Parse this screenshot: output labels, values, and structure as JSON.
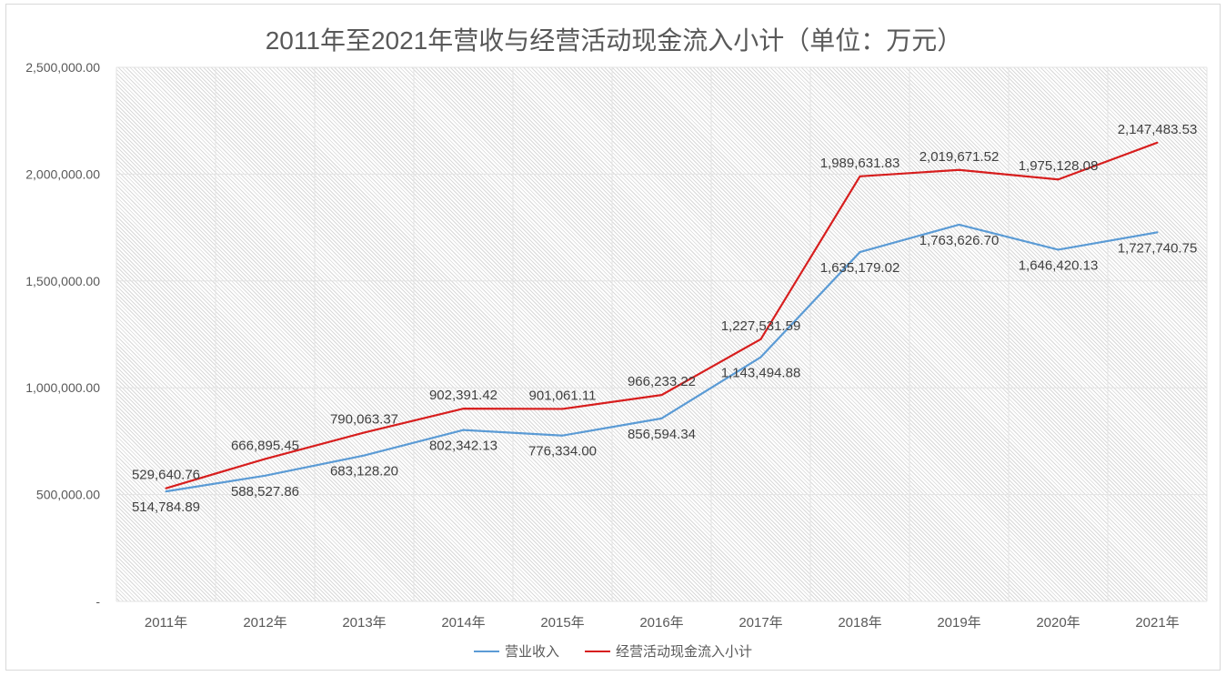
{
  "chart_data": {
    "type": "line",
    "title": "2011年至2021年营收与经营活动现金流入小计（单位：万元）",
    "categories": [
      "2011年",
      "2012年",
      "2013年",
      "2014年",
      "2015年",
      "2016年",
      "2017年",
      "2018年",
      "2019年",
      "2020年",
      "2021年"
    ],
    "ylim": [
      0,
      2500000
    ],
    "yticks": [
      "-",
      "500,000.00",
      "1,000,000.00",
      "1,500,000.00",
      "2,000,000.00",
      "2,500,000.00"
    ],
    "grid": true,
    "legend_position": "bottom",
    "series": [
      {
        "name": "营业收入",
        "color": "#5b9bd5",
        "values": [
          514784.89,
          588527.86,
          683128.2,
          802342.13,
          776334.0,
          856594.34,
          1143494.88,
          1635179.02,
          1763626.7,
          1646420.13,
          1727740.75
        ],
        "labels": [
          "514,784.89",
          "588,527.86",
          "683,128.20",
          "802,342.13",
          "776,334.00",
          "856,594.34",
          "1,143,494.88",
          "1,635,179.02",
          "1,763,626.70",
          "1,646,420.13",
          "1,727,740.75"
        ]
      },
      {
        "name": "经营活动现金流入小计",
        "color": "#d71e1e",
        "values": [
          529640.76,
          666895.45,
          790063.37,
          902391.42,
          901061.11,
          966233.22,
          1227531.59,
          1989631.83,
          2019671.52,
          1975128.08,
          2147483.53
        ],
        "labels": [
          "529,640.76",
          "666,895.45",
          "790,063.37",
          "902,391.42",
          "901,061.11",
          "966,233.22",
          "1,227,531.59",
          "1,989,631.83",
          "2,019,671.52",
          "1,975,128.08",
          "2,147,483.53"
        ]
      }
    ]
  }
}
